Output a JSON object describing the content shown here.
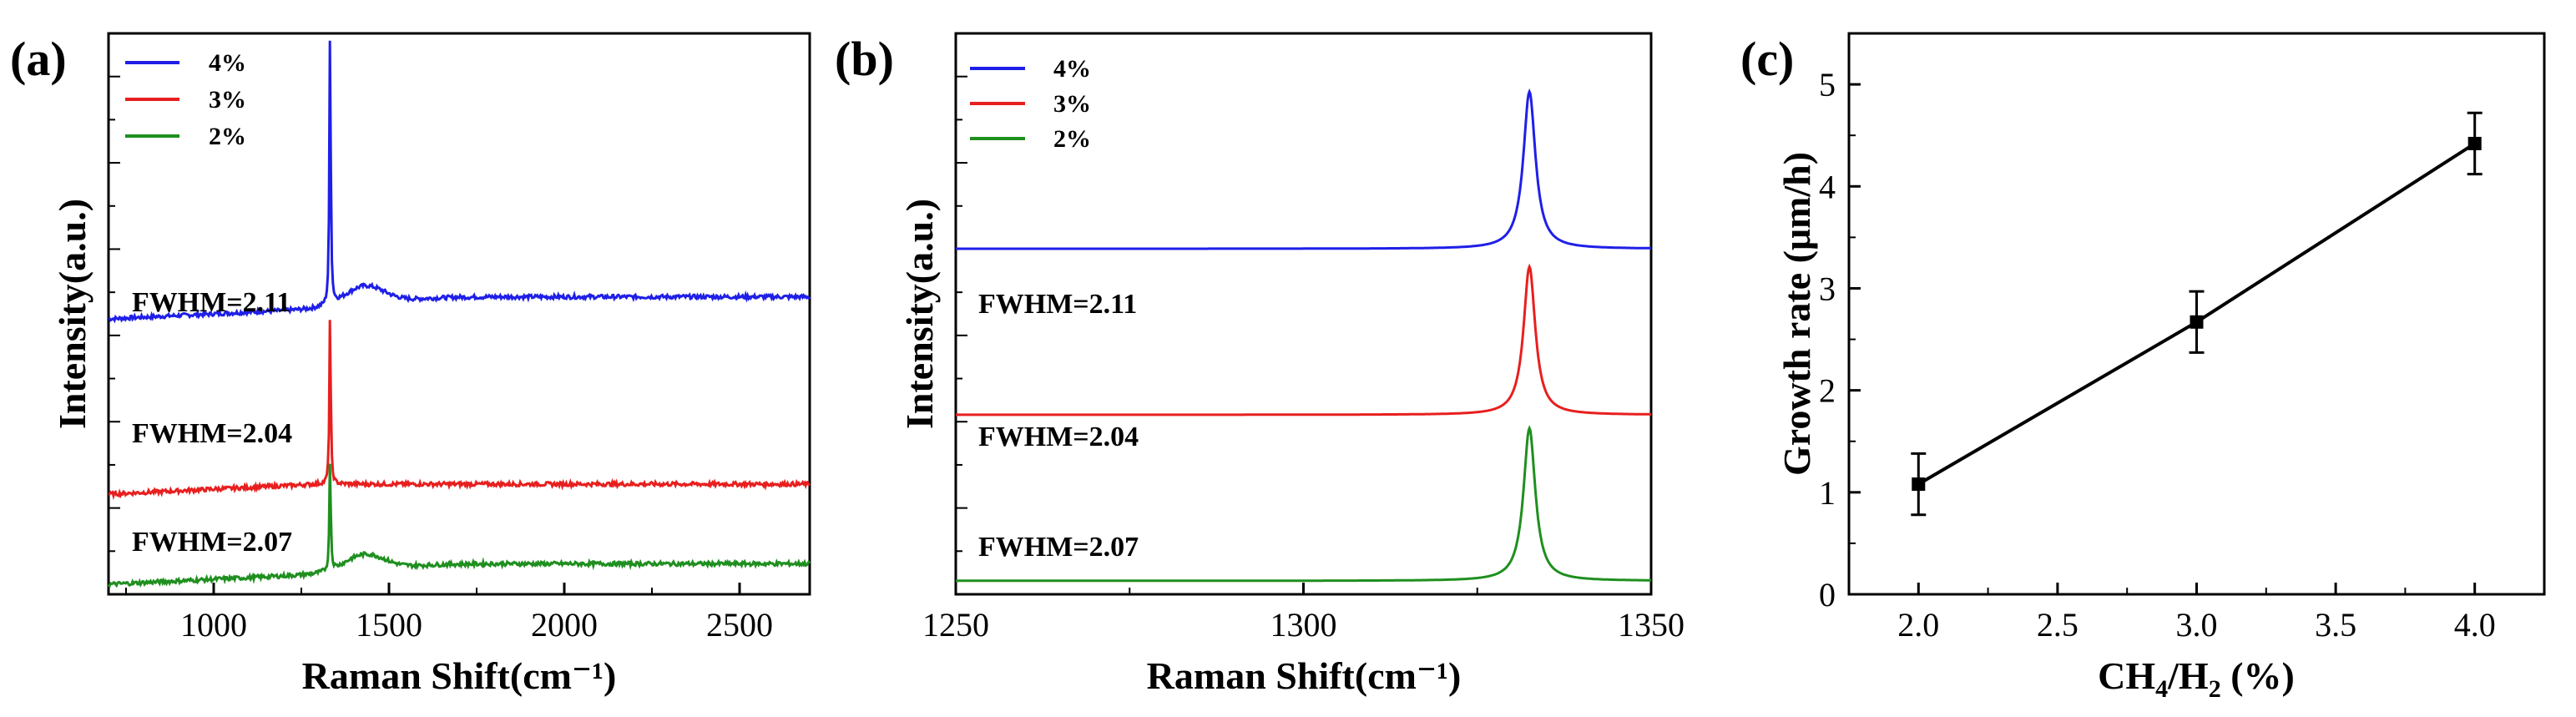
{
  "chart_data": [
    {
      "type": "line",
      "panel_label": "(a)",
      "xlabel": "Raman Shift(cm⁻¹)",
      "ylabel": "Intensity(a.u.)",
      "xlim": [
        700,
        2700
      ],
      "xticks": [
        1000,
        1500,
        2000,
        2500
      ],
      "xtick_labels": [
        "1000",
        "1500",
        "2000",
        "2500"
      ],
      "y_numeric_labels": false,
      "peak_position": 1332,
      "series": [
        {
          "name": "4%",
          "color": "#1f1fe8",
          "baseline": 0.37,
          "peak_height": 0.56,
          "broad_hump": 0.04,
          "offset": 0.53
        },
        {
          "name": "3%",
          "color": "#e81f1f",
          "baseline": 0.17,
          "peak_height": 0.35,
          "broad_hump": 0.0,
          "offset": 0.18
        },
        {
          "name": "2%",
          "color": "#1f8f1f",
          "baseline": 0.0,
          "peak_height": 0.23,
          "broad_hump": 0.035,
          "offset": 0.0
        }
      ],
      "legend": [
        "4%",
        "3%",
        "2%"
      ],
      "legend_position": "top-left",
      "annotations": [
        "FWHM=2.11",
        "FWHM=2.04",
        "FWHM=2.07"
      ]
    },
    {
      "type": "line",
      "panel_label": "(b)",
      "xlabel": "Raman Shift(cm⁻¹)",
      "ylabel": "Intensity(a.u.)",
      "xlim": [
        1250,
        1350
      ],
      "xticks": [
        1250,
        1300,
        1350
      ],
      "xtick_labels": [
        "1250",
        "1300",
        "1350"
      ],
      "y_numeric_labels": false,
      "peak_position": 1332.5,
      "series": [
        {
          "name": "4%",
          "color": "#1f1fe8",
          "fwhm": 2.11,
          "offset": 0.74,
          "peak_height": 0.35
        },
        {
          "name": "3%",
          "color": "#e81f1f",
          "fwhm": 2.04,
          "offset": 0.37,
          "peak_height": 0.33
        },
        {
          "name": "2%",
          "color": "#1f8f1f",
          "fwhm": 2.07,
          "offset": 0.0,
          "peak_height": 0.34
        }
      ],
      "legend": [
        "4%",
        "3%",
        "2%"
      ],
      "legend_position": "top-left",
      "annotations": [
        "FWHM=2.11",
        "FWHM=2.04",
        "FWHM=2.07"
      ]
    },
    {
      "type": "scatter",
      "panel_label": "(c)",
      "xlabel_main": "CH",
      "xlabel_sub1": "4",
      "xlabel_mid": "/H",
      "xlabel_sub2": "2",
      "xlabel_tail": " (%)",
      "ylabel": "Growth rate (μm/h)",
      "xlim": [
        1.75,
        4.25
      ],
      "ylim": [
        0,
        5.5
      ],
      "xticks": [
        2.0,
        2.5,
        3.0,
        3.5,
        4.0
      ],
      "xtick_labels": [
        "2.0",
        "2.5",
        "3.0",
        "3.5",
        "4.0"
      ],
      "yticks": [
        0,
        1,
        2,
        3,
        4,
        5
      ],
      "ytick_labels": [
        "0",
        "1",
        "2",
        "3",
        "4",
        "5"
      ],
      "x": [
        2.0,
        3.0,
        4.0
      ],
      "y": [
        1.08,
        2.67,
        4.42
      ],
      "yerr": [
        0.3,
        0.3,
        0.3
      ],
      "fit_line": true,
      "color": "#000000"
    }
  ]
}
